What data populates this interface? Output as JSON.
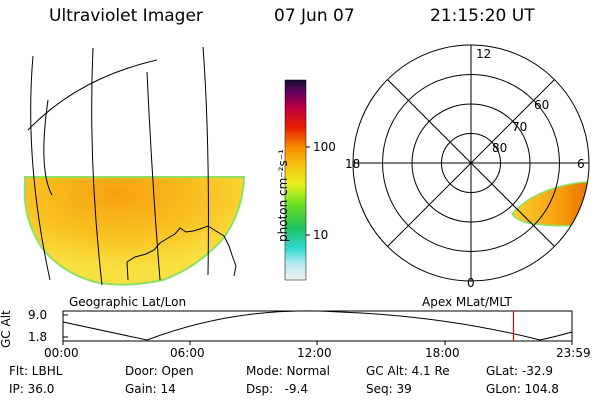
{
  "header": {
    "title": "Ultraviolet Imager",
    "date": "07 Jun 07",
    "time": "21:15:20 UT"
  },
  "panels": {
    "geo_label": "Geographic Lat/Lon",
    "apex_label": "Apex MLat/MLT"
  },
  "colorbar": {
    "label": "photon cm⁻²s⁻¹",
    "tick_100": "100",
    "tick_10": "10"
  },
  "polar": {
    "mlt_12": "12",
    "mlt_18": "18",
    "mlt_6": "6",
    "mlt_0": "0",
    "lat_60": "60",
    "lat_70": "70",
    "lat_80": "80"
  },
  "altitude_plot": {
    "ylabel": "GC Alt",
    "ymax": "9.0",
    "ymin": "1.8",
    "xticks": [
      "00:00",
      "06:00",
      "12:00",
      "18:00",
      "23:59"
    ],
    "current_time_fraction": 0.885
  },
  "info": {
    "flt": "Flt: LBHL",
    "ip": "IP: 36.0",
    "door": "Door: Open",
    "gain": "Gain: 14",
    "mode": "Mode: Normal",
    "dsp": "Dsp:   -9.4",
    "gcalt": "GC Alt: 4.1 Re",
    "seq": "Seq: 39",
    "glat": "GLat: -32.9",
    "glon": "GLon: 104.8"
  }
}
